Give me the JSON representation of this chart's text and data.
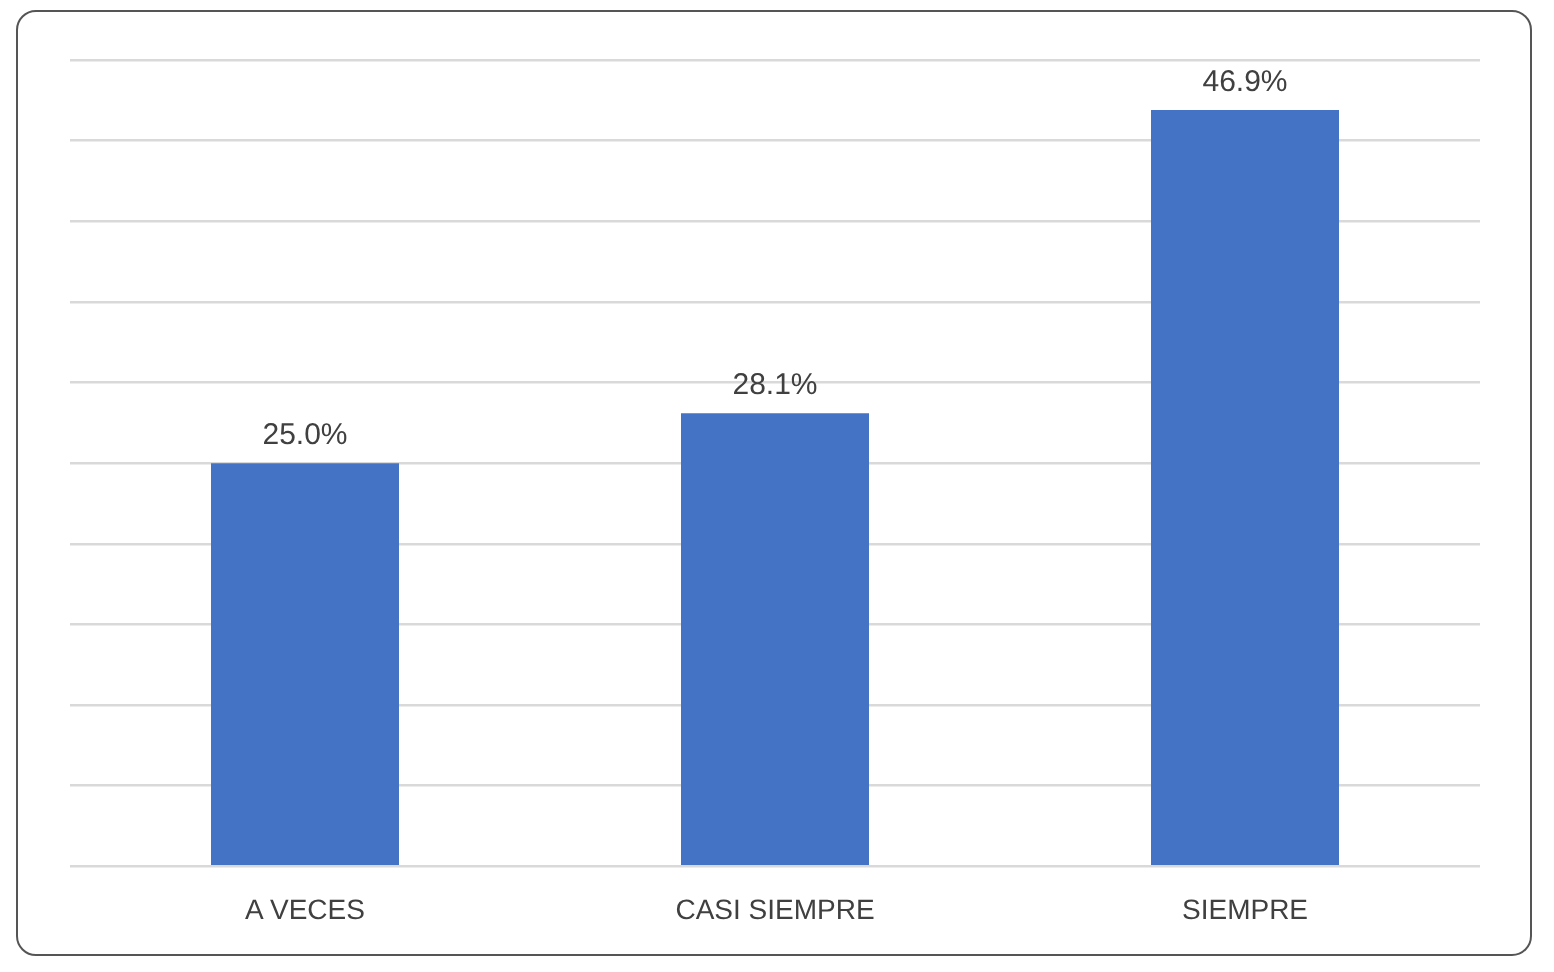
{
  "chart_data": {
    "type": "bar",
    "categories": [
      "A VECES",
      "CASI SIEMPRE",
      "SIEMPRE"
    ],
    "values": [
      25.0,
      28.1,
      46.9
    ],
    "value_labels": [
      "25.0%",
      "28.1%",
      "46.9%"
    ],
    "color": "#4472c4",
    "ylim": [
      0,
      50
    ],
    "yticks": [
      {
        "value": 0,
        "label": null
      },
      {
        "value": 5,
        "label": null
      },
      {
        "value": 10,
        "label": null
      },
      {
        "value": 15,
        "label": null
      },
      {
        "value": 20,
        "label": null
      },
      {
        "value": 25,
        "label": null
      },
      {
        "value": 30,
        "label": null
      },
      {
        "value": 35,
        "label": null
      },
      {
        "value": 40,
        "label": null
      },
      {
        "value": 45,
        "label": null
      },
      {
        "value": 50,
        "label": null
      }
    ],
    "grid": "y",
    "tick_labels": "x"
  }
}
